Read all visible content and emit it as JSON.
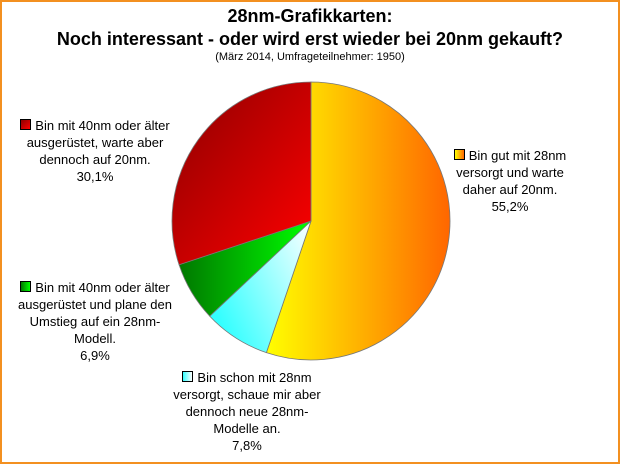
{
  "chart_data": {
    "type": "pie",
    "title": "28nm-Grafikkarten:",
    "title2": "Noch interessant - oder wird erst wieder bei 20nm gekauft?",
    "subtitle": "(März 2014, Umfrageteilnehmer: 1950)",
    "slices": [
      {
        "label": "Bin gut mit 28nm versorgt und warte daher auf 20nm.",
        "value": 55.2,
        "value_label": "55,2%",
        "colors": [
          "#ffff00",
          "#ff6600"
        ]
      },
      {
        "label": "Bin schon mit 28nm versorgt, schaue mir aber dennoch neue 28nm-Modelle an.",
        "value": 7.8,
        "value_label": "7,8%",
        "colors": [
          "#ffffff",
          "#33ffff"
        ]
      },
      {
        "label": "Bin mit 40nm oder älter ausgerüstet und plane den Umstieg auf ein 28nm-Modell.",
        "value": 6.9,
        "value_label": "6,9%",
        "colors": [
          "#007700",
          "#00ff00"
        ]
      },
      {
        "label": "Bin mit 40nm oder älter ausgerüstet, warte aber dennoch auf 20nm.",
        "value": 30.1,
        "value_label": "30,1%",
        "colors": [
          "#8b0000",
          "#ff0000"
        ]
      }
    ]
  }
}
